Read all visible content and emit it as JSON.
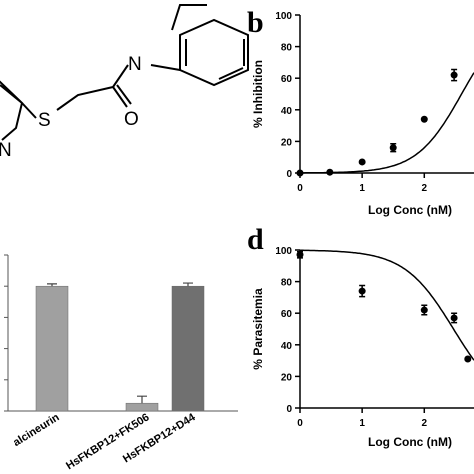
{
  "panels": {
    "b": {
      "letter": "b"
    },
    "d": {
      "letter": "d"
    }
  },
  "structure": {
    "atoms": [
      "N",
      "O",
      "S",
      "N"
    ],
    "colors": {
      "bond": "#000000"
    }
  },
  "chart_data": [
    {
      "id": "b",
      "type": "scatter",
      "title": "",
      "xlabel": "Log Conc (nM)",
      "ylabel": "% Inhibition",
      "xlim": [
        0,
        2.8
      ],
      "ylim": [
        0,
        100
      ],
      "xticks": [
        "0",
        "1",
        "2"
      ],
      "yticks": [
        "0",
        "20",
        "40",
        "60",
        "80",
        "100"
      ],
      "grid": false,
      "series": [
        {
          "x": [
            0.0,
            0.48,
            1.0,
            1.5,
            2.0,
            2.48
          ],
          "y": [
            0,
            0.5,
            7,
            16,
            34,
            62
          ],
          "err": [
            0,
            0,
            0,
            2.5,
            0,
            3.5
          ]
        }
      ],
      "fit": {
        "model": "sigmoid",
        "bottom": 0,
        "top": 100,
        "logEC50": 2.6,
        "hill": 1.2
      }
    },
    {
      "id": "d",
      "type": "scatter",
      "title": "",
      "xlabel": "Log Conc (nM)",
      "ylabel": "% Parasitemia",
      "xlim": [
        0,
        2.8
      ],
      "ylim": [
        0,
        100
      ],
      "xticks": [
        "0",
        "1",
        "2"
      ],
      "yticks": [
        "0",
        "20",
        "40",
        "60",
        "80",
        "100"
      ],
      "grid": false,
      "series": [
        {
          "x": [
            0,
            1.0,
            2.0,
            2.48,
            2.7
          ],
          "y": [
            97,
            74,
            62,
            57,
            31
          ],
          "err": [
            2,
            3.5,
            3,
            3,
            0
          ]
        }
      ],
      "fit": {
        "model": "sigmoid",
        "bottom": 0,
        "top": 100,
        "logEC50": 2.47,
        "hill": -1.1
      }
    },
    {
      "id": "c",
      "type": "bar",
      "title": "",
      "xlabel": "",
      "ylabel": "",
      "ylim": [
        0,
        100
      ],
      "categories": [
        "alcineurin",
        "HsFKBP12+FK506",
        "HsFKBP12+D44"
      ],
      "values": [
        80,
        5,
        80
      ],
      "err": [
        1.5,
        4.5,
        2
      ],
      "colors": [
        "#a0a0a0",
        "#a0a0a0",
        "#707070"
      ]
    }
  ]
}
